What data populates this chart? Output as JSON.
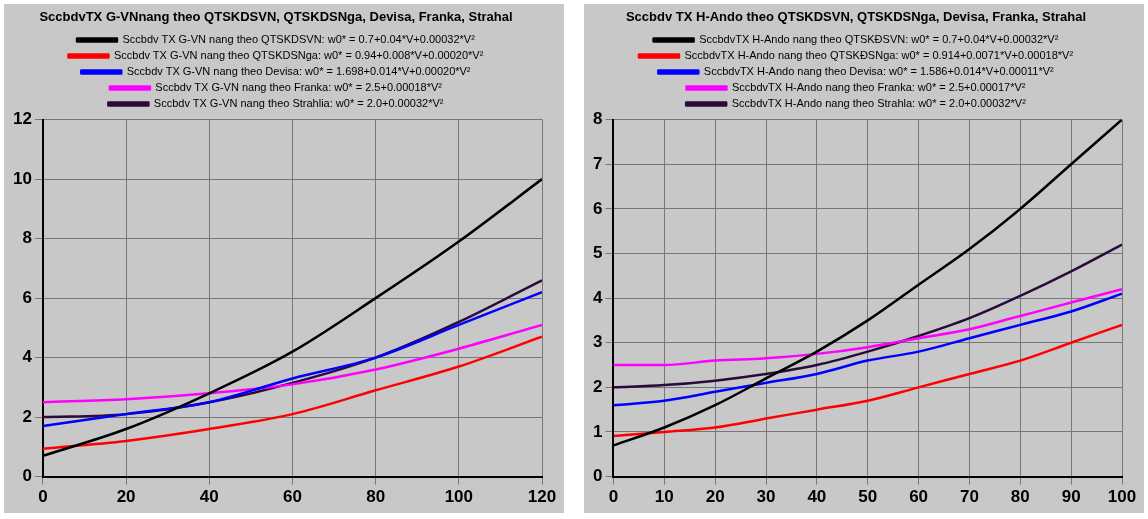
{
  "chart_data": [
    {
      "type": "line",
      "title": "SccbdvTX G-VNnang theo QTSKDSVN, QTSKDSNga, Devisa, Franka, Strahal",
      "x": [
        0,
        20,
        40,
        60,
        80,
        100,
        120
      ],
      "xlim": [
        0,
        120
      ],
      "xticks": [
        0,
        20,
        40,
        60,
        80,
        100,
        120
      ],
      "ylim": [
        0,
        12
      ],
      "yticks": [
        0,
        2,
        4,
        6,
        8,
        10,
        12
      ],
      "grid": true,
      "legend": "top",
      "series": [
        {
          "name": "Sccbdv TX G-VN nang theo QTSKDSVN: w0* = 0.7+0.04*V+0.00032*V²",
          "color": "#000000",
          "values": [
            0.7,
            1.6,
            2.8,
            4.2,
            6.0,
            7.9,
            10.0
          ]
        },
        {
          "name": "Sccbdv TX G-VN nang theo QTSKDSNga: w0* = 0.94+0.008*V+0.00020*V²",
          "color": "#ff0000",
          "values": [
            0.94,
            1.2,
            1.6,
            2.1,
            2.9,
            3.7,
            4.7
          ]
        },
        {
          "name": "Sccbdv TX G-VN nang theo Devisa: w0* = 1.698+0.014*V+0.00020*V²",
          "color": "#0000ff",
          "values": [
            1.7,
            2.1,
            2.5,
            3.3,
            4.0,
            5.1,
            6.2
          ]
        },
        {
          "name": "Sccbdv TX G-VN nang theo Franka: w0* = 2.5+0.00018*V²",
          "color": "#ff00ff",
          "values": [
            2.5,
            2.6,
            2.8,
            3.1,
            3.6,
            4.3,
            5.1
          ]
        },
        {
          "name": "Sccbdv TX G-VN nang theo Strahlia: w0* = 2.0+0.00032*V²",
          "color": "#2a0a3a",
          "values": [
            2.0,
            2.1,
            2.5,
            3.15,
            4.0,
            5.2,
            6.6
          ]
        }
      ]
    },
    {
      "type": "line",
      "title": "Sccbdv TX H-Ando theo QTSKDSVN, QTSKDSNga, Devisa, Franka, Strahal",
      "x": [
        0,
        10,
        20,
        30,
        40,
        50,
        60,
        70,
        80,
        90,
        100
      ],
      "xlim": [
        0,
        100
      ],
      "xticks": [
        0,
        10,
        20,
        30,
        40,
        50,
        60,
        70,
        80,
        90,
        100
      ],
      "ylim": [
        0,
        8
      ],
      "yticks": [
        0,
        1,
        2,
        3,
        4,
        5,
        6,
        7,
        8
      ],
      "grid": true,
      "legend": "top",
      "series": [
        {
          "name": "SccbdvTX H-Ando nang theo QTSKĐSVN: w0* = 0.7+0.04*V+0.00032*V²",
          "color": "#000000",
          "values": [
            0.7,
            1.1,
            1.6,
            2.2,
            2.8,
            3.5,
            4.3,
            5.1,
            6.0,
            7.0,
            8.0
          ]
        },
        {
          "name": "SccbdvTX H-Ando nang theo QTSKĐSNga: w0* = 0.914+0.0071*V+0.00018*V²",
          "color": "#ff0000",
          "values": [
            0.91,
            1.0,
            1.1,
            1.3,
            1.5,
            1.7,
            2.0,
            2.3,
            2.6,
            3.0,
            3.4
          ]
        },
        {
          "name": "SccbdvTX H-Ando nang theo Devisa: w0* = 1.586+0.014*V+0.00011*V²",
          "color": "#0000ff",
          "values": [
            1.6,
            1.7,
            1.9,
            2.1,
            2.3,
            2.6,
            2.8,
            3.1,
            3.4,
            3.7,
            4.1
          ]
        },
        {
          "name": "SccbdvTX H-Ando nang theo Franka: w0* = 2.5+0.00017*V²",
          "color": "#ff00ff",
          "values": [
            2.5,
            2.5,
            2.6,
            2.65,
            2.75,
            2.9,
            3.1,
            3.3,
            3.6,
            3.9,
            4.2
          ]
        },
        {
          "name": "SccbdvTX H-Ando nang theo Strahla: w0* = 2.0+0.00032*V²",
          "color": "#2a0a3a",
          "values": [
            2.0,
            2.05,
            2.15,
            2.3,
            2.5,
            2.8,
            3.15,
            3.55,
            4.05,
            4.6,
            5.2
          ]
        }
      ]
    }
  ]
}
